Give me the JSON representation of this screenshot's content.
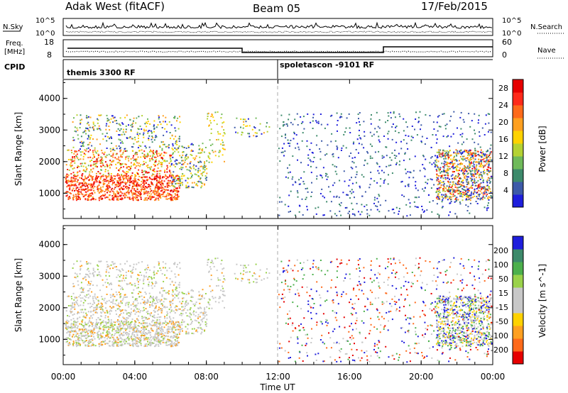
{
  "header": {
    "station": "Adak West (fitACF)",
    "beam": "Beam 05",
    "date": "17/Feb/2015"
  },
  "strip_panels": {
    "nsky_label": "N.Sky",
    "nsearch_label": "N.Search",
    "nsky_ticks": [
      "10^5",
      "10^0"
    ],
    "nsearch_ticks": [
      "10^5",
      "10^0"
    ],
    "freq_label_1": "Freq.",
    "freq_label_2": "[MHz]",
    "freq_ticks": [
      "18",
      "8"
    ],
    "nave_label": "Nave",
    "nave_ticks": [
      "60",
      "0"
    ],
    "cpid_label": "CPID",
    "cpid_entries": [
      {
        "name": "themis 3300 RF",
        "start_hour": 0
      },
      {
        "name": "spoletascon -9101 RF",
        "start_hour": 12
      }
    ]
  },
  "colors": {
    "power": [
      "#1e1edc",
      "#3d5aa8",
      "#3d8a6b",
      "#6fba5a",
      "#b4d233",
      "#ffd200",
      "#ffa020",
      "#ff6a1a",
      "#ff2a1a",
      "#e60000"
    ],
    "velocity": [
      "#e60000",
      "#ff6a1a",
      "#ffa020",
      "#ffd200",
      "#c8c8c8",
      "#c8c8c8",
      "#9ad24a",
      "#4cb04c",
      "#3d8a6b",
      "#1e1edc"
    ]
  },
  "chart_data": [
    {
      "type": "heatmap",
      "name": "power",
      "ylabel": "Slant Range [km]",
      "yticks": [
        "1000",
        "2000",
        "3000",
        "4000"
      ],
      "ylim": [
        200,
        4600
      ],
      "colorbar_label": "Power [dB]",
      "colorbar_ticks": [
        "4",
        "8",
        "12",
        "16",
        "20",
        "24",
        "28"
      ],
      "colorbar_range": [
        0,
        30
      ]
    },
    {
      "type": "heatmap",
      "name": "velocity",
      "ylabel": "Slant Range [km]",
      "yticks": [
        "1000",
        "2000",
        "3000",
        "4000"
      ],
      "ylim": [
        200,
        4600
      ],
      "xlabel": "Time UT",
      "xticks": [
        "00:00",
        "04:00",
        "08:00",
        "12:00",
        "16:00",
        "20:00",
        "00:00"
      ],
      "xlim_hours": [
        0,
        24
      ],
      "colorbar_label": "Velocity [m s^-1]",
      "colorbar_ticks": [
        "200",
        "100",
        "50",
        "15",
        "-15",
        "-50",
        "-100",
        "-200"
      ]
    }
  ]
}
